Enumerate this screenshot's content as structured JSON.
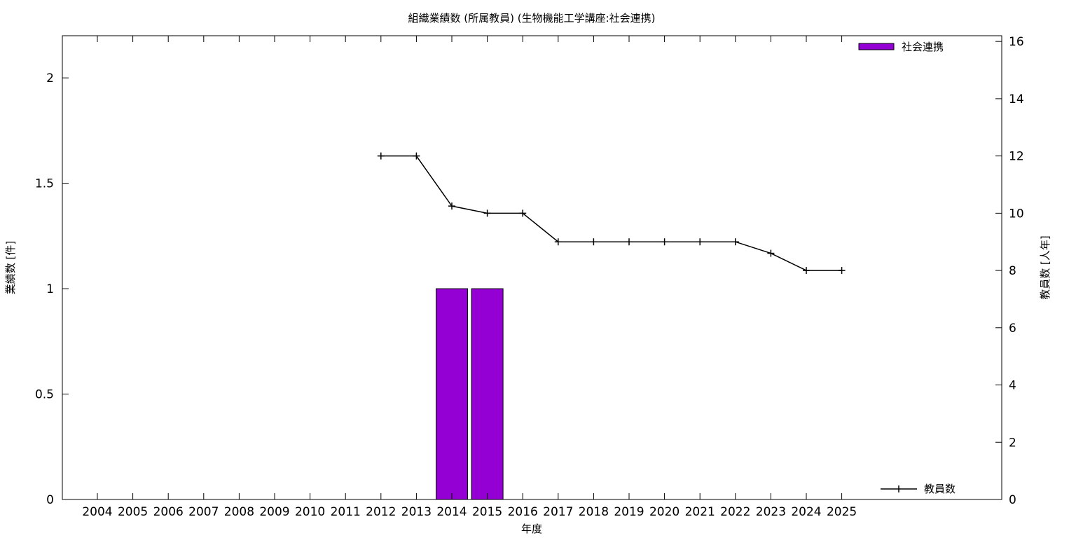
{
  "chart_data": {
    "type": "bar",
    "title": "組織業績数 (所属教員) (生物機能工学講座:社会連携)",
    "xlabel": "年度",
    "ylabel": "業績数 [件]",
    "y2label": "教員数 [人年]",
    "categories": [
      "2004",
      "2005",
      "2006",
      "2007",
      "2008",
      "2009",
      "2010",
      "2011",
      "2012",
      "2013",
      "2014",
      "2015",
      "2016",
      "2017",
      "2018",
      "2019",
      "2020",
      "2021",
      "2022",
      "2023",
      "2024",
      "2025"
    ],
    "ylim": [
      0,
      2.2
    ],
    "y_ticks": [
      0,
      0.5,
      1,
      1.5,
      2
    ],
    "y_tick_labels": [
      "0",
      "0.5",
      "1",
      "1.5",
      "2"
    ],
    "y2lim": [
      0,
      16.2
    ],
    "y2_ticks": [
      0,
      2,
      4,
      6,
      8,
      10,
      12,
      14,
      16
    ],
    "y2_tick_labels": [
      "0",
      "2",
      "4",
      "6",
      "8",
      "10",
      "12",
      "14",
      "16"
    ],
    "grid": false,
    "series": [
      {
        "name": "社会連携",
        "kind": "bar",
        "axis": "left",
        "color": "#9400d3",
        "legend": "top-right",
        "values": [
          0,
          0,
          0,
          0,
          0,
          0,
          0,
          0,
          0,
          0,
          1,
          1,
          0,
          0,
          0,
          0,
          0,
          0,
          0,
          0,
          0,
          0
        ]
      },
      {
        "name": "教員数",
        "kind": "line",
        "axis": "right",
        "color": "#000000",
        "legend": "bottom-right",
        "values": [
          null,
          null,
          null,
          null,
          null,
          null,
          null,
          null,
          12,
          12,
          10.25,
          10,
          10,
          9,
          9,
          9,
          9,
          9,
          9,
          8.6,
          8,
          8
        ]
      }
    ]
  }
}
